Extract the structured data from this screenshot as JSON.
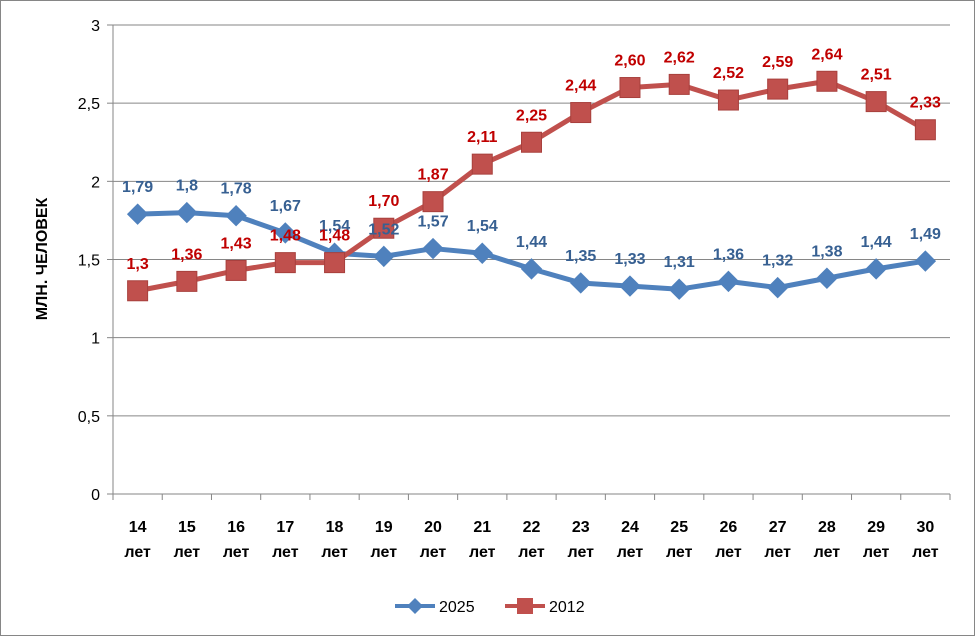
{
  "chart_data": {
    "type": "line",
    "categories": [
      [
        "14",
        "лет"
      ],
      [
        "15",
        "лет"
      ],
      [
        "16",
        "лет"
      ],
      [
        "17",
        "лет"
      ],
      [
        "18",
        "лет"
      ],
      [
        "19",
        "лет"
      ],
      [
        "20",
        "лет"
      ],
      [
        "21",
        "лет"
      ],
      [
        "22",
        "лет"
      ],
      [
        "23",
        "лет"
      ],
      [
        "24",
        "лет"
      ],
      [
        "25",
        "лет"
      ],
      [
        "26",
        "лет"
      ],
      [
        "27",
        "лет"
      ],
      [
        "28",
        "лет"
      ],
      [
        "29",
        "лет"
      ],
      [
        "30",
        "лет"
      ]
    ],
    "ylabel": "МЛН. ЧЕЛОВЕК",
    "ylim": [
      0,
      3
    ],
    "yticks": [
      0,
      0.5,
      1,
      1.5,
      2,
      2.5,
      3
    ],
    "ytick_labels": [
      "0",
      "0,5",
      "1",
      "1,5",
      "2",
      "2,5",
      "3"
    ],
    "grid": "horizontal",
    "legend_position": "bottom",
    "series": [
      {
        "name": "2025",
        "color": "#4F81BD",
        "label_color": "#376092",
        "marker": "diamond",
        "values": [
          1.79,
          1.8,
          1.78,
          1.67,
          1.54,
          1.52,
          1.57,
          1.54,
          1.44,
          1.35,
          1.33,
          1.31,
          1.36,
          1.32,
          1.38,
          1.44,
          1.49
        ],
        "labels": [
          "1,79",
          "1,8",
          "1,78",
          "1,67",
          "1,54",
          "1,52",
          "1,57",
          "1,54",
          "1,44",
          "1,35",
          "1,33",
          "1,31",
          "1,36",
          "1,32",
          "1,38",
          "1,44",
          "1,49"
        ]
      },
      {
        "name": "2012",
        "color": "#C0504D",
        "label_color": "#C00000",
        "marker": "square",
        "values": [
          1.3,
          1.36,
          1.43,
          1.48,
          1.48,
          1.7,
          1.87,
          2.11,
          2.25,
          2.44,
          2.6,
          2.62,
          2.52,
          2.59,
          2.64,
          2.51,
          2.33
        ],
        "labels": [
          "1,3",
          "1,36",
          "1,43",
          "1,48",
          "1,48",
          "1,70",
          "1,87",
          "2,11",
          "2,25",
          "2,44",
          "2,60",
          "2,62",
          "2,52",
          "2,59",
          "2,64",
          "2,51",
          "2,33"
        ]
      }
    ]
  }
}
